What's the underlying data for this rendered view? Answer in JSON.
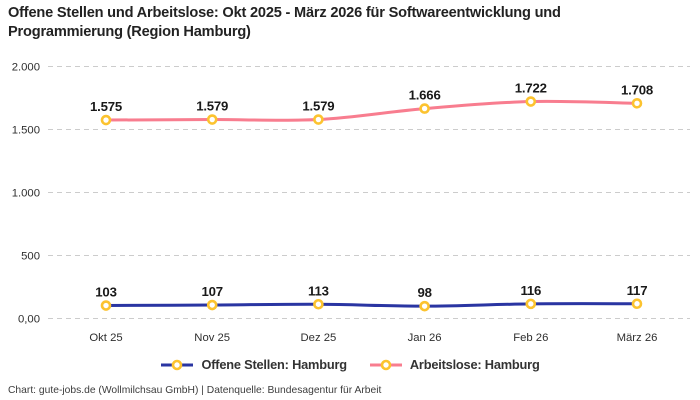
{
  "header": {
    "title_lines": [
      "Offene Stellen und Arbeitslose: Okt 2025 - März 2026 für Softwareentwicklung und",
      "Programmierung (Region Hamburg)"
    ]
  },
  "chart_data": {
    "type": "line",
    "categories": [
      "Okt 25",
      "Nov 25",
      "Dez 25",
      "Jan 26",
      "Feb 26",
      "März 26"
    ],
    "series": [
      {
        "name": "Offene Stellen: Hamburg",
        "values": [
          103,
          107,
          113,
          98,
          116,
          117
        ],
        "labels": [
          "103",
          "107",
          "113",
          "98",
          "116",
          "117"
        ],
        "color": "#2a35a2"
      },
      {
        "name": "Arbeitslose: Hamburg",
        "values": [
          1575,
          1579,
          1579,
          1666,
          1722,
          1708
        ],
        "labels": [
          "1.575",
          "1.579",
          "1.579",
          "1.666",
          "1.722",
          "1.708"
        ],
        "color": "#f87d8f"
      }
    ],
    "marker": {
      "fill": "#ffffff",
      "stroke": "#fcc32f"
    },
    "y_axis": {
      "min": 0,
      "max": 2000,
      "ticks": [
        {
          "value": 0,
          "label": "0,00"
        },
        {
          "value": 500,
          "label": "500"
        },
        {
          "value": 1000,
          "label": "1.000"
        },
        {
          "value": 1500,
          "label": "1.500"
        },
        {
          "value": 2000,
          "label": "2.000"
        }
      ]
    },
    "grid": {
      "on": true,
      "style": "dashed",
      "color": "#cccccc"
    },
    "legend_position": "bottom",
    "title": "Offene Stellen und Arbeitslose: Okt 2025 - März 2026 für Softwareentwicklung und Programmierung (Region Hamburg)"
  },
  "footer": {
    "text": "Chart: gute-jobs.de (Wollmilchsau GmbH) | Datenquelle: Bundesagentur für Arbeit"
  }
}
